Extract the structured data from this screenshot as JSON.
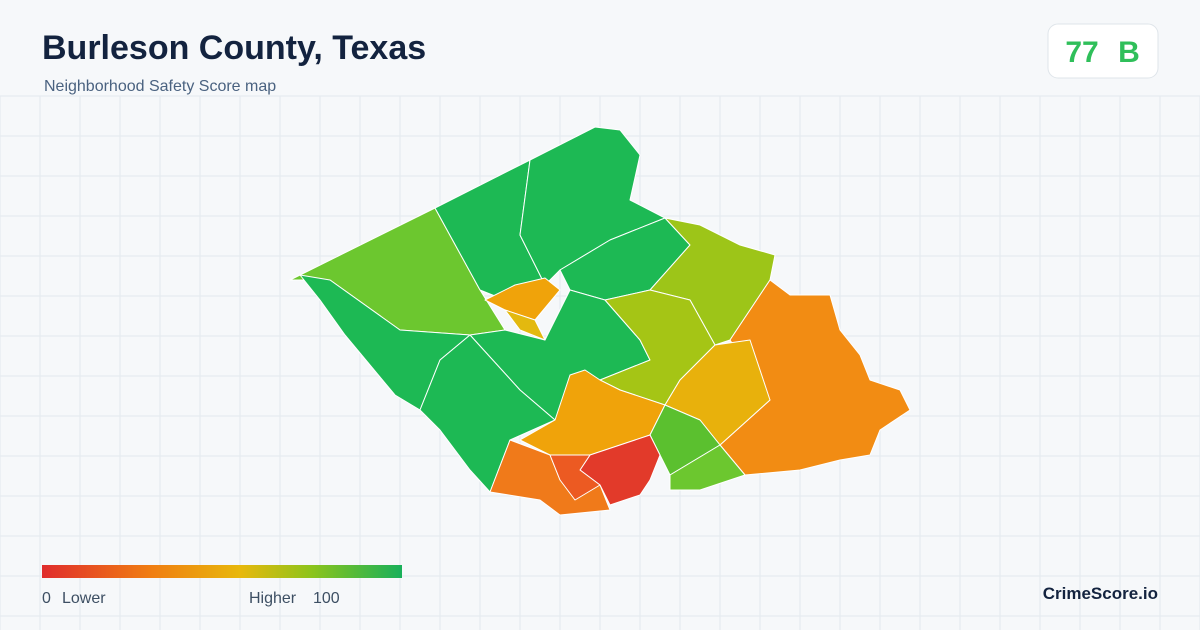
{
  "header": {
    "title": "Burleson County, Texas",
    "subtitle": "Neighborhood Safety Score map"
  },
  "score": {
    "value": 77,
    "grade": "B"
  },
  "legend": {
    "min": 0,
    "min_label": "Lower",
    "max_label": "Higher",
    "max": 100
  },
  "brand": "CrimeScore.io"
}
